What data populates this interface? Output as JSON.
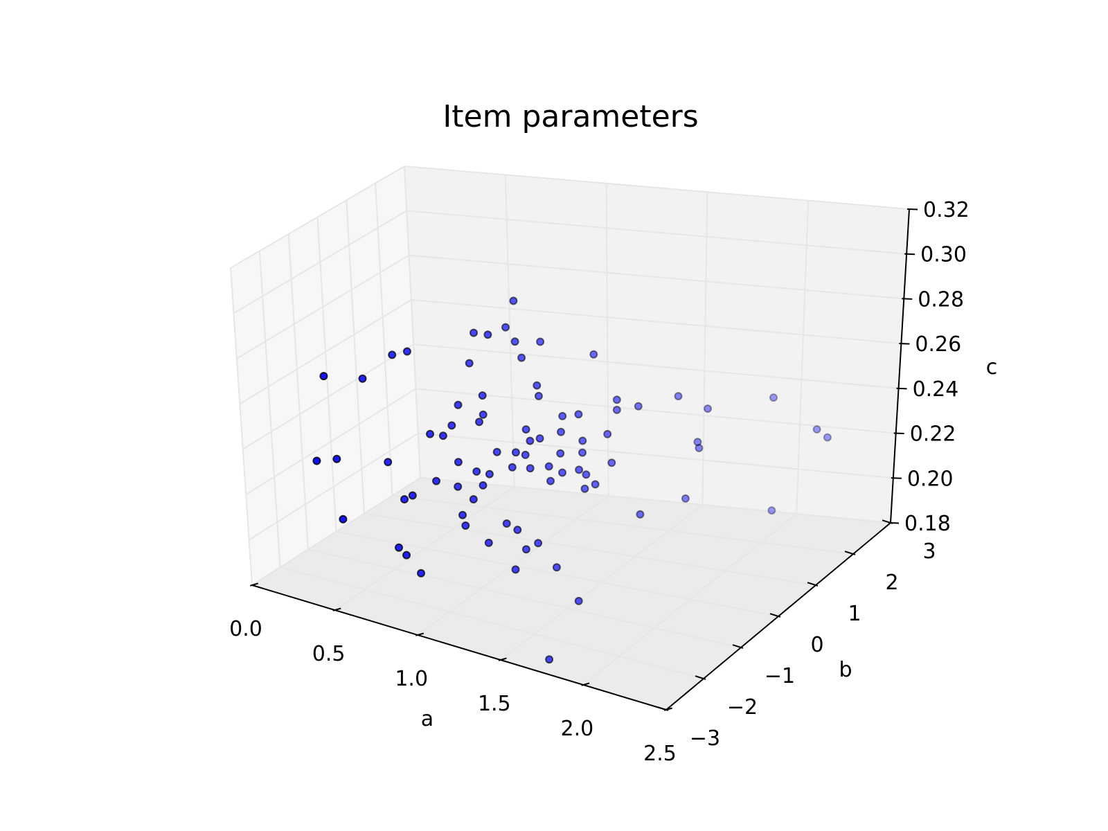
{
  "chart_data": {
    "type": "scatter",
    "projection": "3d",
    "title": "Item parameters",
    "xlabel": "a",
    "ylabel": "b",
    "zlabel": "c",
    "xlim": [
      0.0,
      2.5
    ],
    "ylim": [
      -3,
      3
    ],
    "zlim": [
      0.18,
      0.32
    ],
    "x_ticks": [
      "0.0",
      "0.5",
      "1.0",
      "1.5",
      "2.0",
      "2.5"
    ],
    "y_ticks": [
      "−3",
      "−2",
      "−1",
      "0",
      "1",
      "2",
      "3"
    ],
    "z_ticks": [
      "0.18",
      "0.20",
      "0.22",
      "0.24",
      "0.26",
      "0.28",
      "0.30",
      "0.32"
    ],
    "grid": true,
    "marker_color": "#0000ff",
    "edge_color": "#000000",
    "pane_colors": [
      "#f2f2f2",
      "#ebebeb",
      "#f7f7f7"
    ],
    "points": [
      {
        "a": 0.9,
        "b": 1.6,
        "c": 0.289
      },
      {
        "a": 1.3,
        "b": 2.0,
        "c": 0.271
      },
      {
        "a": 0.73,
        "b": 1.11,
        "c": 0.275
      },
      {
        "a": 0.8,
        "b": 1.2,
        "c": 0.275
      },
      {
        "a": 0.84,
        "b": 1.6,
        "c": 0.276
      },
      {
        "a": 0.91,
        "b": 1.5,
        "c": 0.272
      },
      {
        "a": 0.98,
        "b": 1.3,
        "c": 0.268
      },
      {
        "a": 1.03,
        "b": 1.7,
        "c": 0.273
      },
      {
        "a": 1.16,
        "b": 0.8,
        "c": 0.259
      },
      {
        "a": 1.13,
        "b": 0.93,
        "c": 0.262
      },
      {
        "a": 0.44,
        "b": 0.4,
        "c": 0.266
      },
      {
        "a": 0.4,
        "b": 0.1,
        "c": 0.266
      },
      {
        "a": 0.71,
        "b": 1.0,
        "c": 0.262
      },
      {
        "a": 0.15,
        "b": -0.9,
        "c": 0.259
      },
      {
        "a": 0.28,
        "b": -0.3,
        "c": 0.256
      },
      {
        "a": 0.85,
        "b": 0.6,
        "c": 0.254
      },
      {
        "a": 0.75,
        "b": 0.3,
        "c": 0.25
      },
      {
        "a": 0.9,
        "b": 0.3,
        "c": 0.249
      },
      {
        "a": 0.9,
        "b": 0.15,
        "c": 0.247
      },
      {
        "a": 0.81,
        "b": -0.3,
        "c": 0.247
      },
      {
        "a": 0.7,
        "b": -0.45,
        "c": 0.242
      },
      {
        "a": 0.78,
        "b": -0.45,
        "c": 0.243
      },
      {
        "a": 1.14,
        "b": 0.4,
        "c": 0.247
      },
      {
        "a": 1.24,
        "b": 0.3,
        "c": 0.246
      },
      {
        "a": 1.2,
        "b": 0.18,
        "c": 0.245
      },
      {
        "a": 1.06,
        "b": -0.2,
        "c": 0.24
      },
      {
        "a": 1.14,
        "b": 0.0,
        "c": 0.24
      },
      {
        "a": 1.18,
        "b": 0.1,
        "c": 0.239
      },
      {
        "a": 0.89,
        "b": -0.6,
        "c": 0.235
      },
      {
        "a": 1.05,
        "b": -0.45,
        "c": 0.232
      },
      {
        "a": 1.13,
        "b": -0.1,
        "c": 0.234
      },
      {
        "a": 1.24,
        "b": -0.1,
        "c": 0.236
      },
      {
        "a": 0.51,
        "b": -0.9,
        "c": 0.229
      },
      {
        "a": 0.25,
        "b": -1.2,
        "c": 0.227
      },
      {
        "a": 0.18,
        "b": -1.5,
        "c": 0.227
      },
      {
        "a": 0.8,
        "b": -0.9,
        "c": 0.227
      },
      {
        "a": 0.94,
        "b": -0.95,
        "c": 0.228
      },
      {
        "a": 0.98,
        "b": -0.5,
        "c": 0.232
      },
      {
        "a": 1.05,
        "b": -0.7,
        "c": 0.229
      },
      {
        "a": 1.04,
        "b": -1.0,
        "c": 0.225
      },
      {
        "a": 0.72,
        "b": -1.3,
        "c": 0.222
      },
      {
        "a": 0.65,
        "b": -1.2,
        "c": 0.218
      },
      {
        "a": 1.02,
        "b": -1.3,
        "c": 0.22
      },
      {
        "a": 1.07,
        "b": -1.5,
        "c": 0.218
      },
      {
        "a": 0.39,
        "b": -1.9,
        "c": 0.209
      },
      {
        "a": 0.74,
        "b": -2.0,
        "c": 0.205
      },
      {
        "a": 0.82,
        "b": -2.2,
        "c": 0.205
      },
      {
        "a": 0.92,
        "b": -2.3,
        "c": 0.2
      },
      {
        "a": 1.38,
        "b": 0.9,
        "c": 0.255
      },
      {
        "a": 1.55,
        "b": 1.3,
        "c": 0.262
      },
      {
        "a": 1.6,
        "b": 1.0,
        "c": 0.261
      },
      {
        "a": 1.68,
        "b": 1.3,
        "c": 0.262
      },
      {
        "a": 1.84,
        "b": 1.8,
        "c": 0.266
      },
      {
        "a": 1.98,
        "b": 2.0,
        "c": 0.262
      },
      {
        "a": 2.3,
        "b": 2.5,
        "c": 0.27
      },
      {
        "a": 1.43,
        "b": 0.7,
        "c": 0.246
      },
      {
        "a": 1.55,
        "b": 0.9,
        "c": 0.25
      },
      {
        "a": 1.28,
        "b": 0.9,
        "c": 0.252
      },
      {
        "a": 1.3,
        "b": 0.7,
        "c": 0.247
      },
      {
        "a": 1.36,
        "b": 0.3,
        "c": 0.242
      },
      {
        "a": 1.46,
        "b": 0.5,
        "c": 0.243
      },
      {
        "a": 1.6,
        "b": 0.7,
        "c": 0.24
      },
      {
        "a": 1.32,
        "b": 0.1,
        "c": 0.237
      },
      {
        "a": 1.4,
        "b": 0.1,
        "c": 0.236
      },
      {
        "a": 1.45,
        "b": 0.4,
        "c": 0.236
      },
      {
        "a": 1.51,
        "b": 0.3,
        "c": 0.236
      },
      {
        "a": 1.36,
        "b": -0.1,
        "c": 0.233
      },
      {
        "a": 1.55,
        "b": 0.0,
        "c": 0.233
      },
      {
        "a": 1.58,
        "b": 0.2,
        "c": 0.234
      },
      {
        "a": 1.94,
        "b": 1.8,
        "c": 0.248
      },
      {
        "a": 2.0,
        "b": 1.5,
        "c": 0.249
      },
      {
        "a": 2.5,
        "b": 2.8,
        "c": 0.258
      },
      {
        "a": 2.58,
        "b": 2.7,
        "c": 0.257
      },
      {
        "a": 1.79,
        "b": 0.5,
        "c": 0.223
      },
      {
        "a": 1.95,
        "b": 1.2,
        "c": 0.228
      },
      {
        "a": 2.35,
        "b": 1.9,
        "c": 0.226
      },
      {
        "a": 1.18,
        "b": -0.7,
        "c": 0.215
      },
      {
        "a": 1.28,
        "b": -0.9,
        "c": 0.216
      },
      {
        "a": 1.42,
        "b": -1.0,
        "c": 0.214
      },
      {
        "a": 1.38,
        "b": -1.2,
        "c": 0.212
      },
      {
        "a": 1.17,
        "b": -1.3,
        "c": 0.211
      },
      {
        "a": 1.36,
        "b": -1.5,
        "c": 0.205
      },
      {
        "a": 1.56,
        "b": -1.2,
        "c": 0.208
      },
      {
        "a": 1.7,
        "b": -1.3,
        "c": 0.197
      },
      {
        "a": 1.62,
        "b": -2.0,
        "c": 0.175
      }
    ]
  }
}
